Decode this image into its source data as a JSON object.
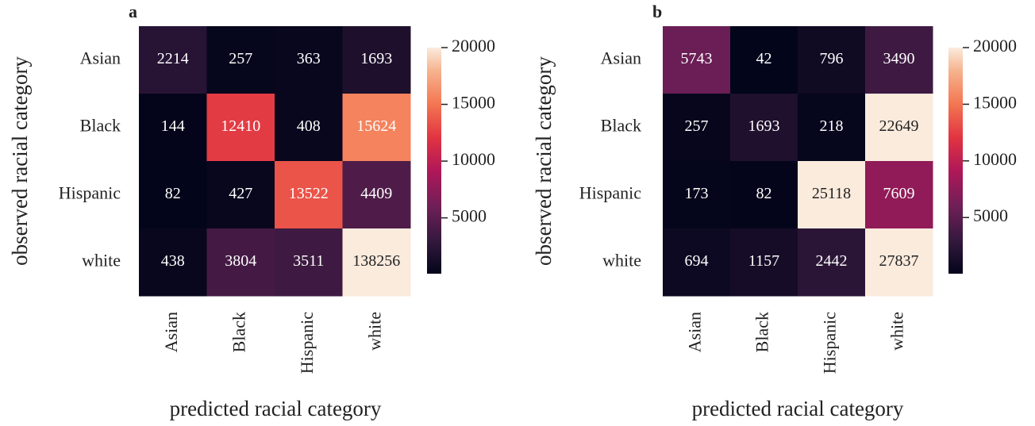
{
  "chart_data": [
    {
      "type": "heatmap",
      "title": "a",
      "xlabel": "predicted racial category",
      "ylabel": "observed racial category",
      "x": [
        "Asian",
        "Black",
        "Hispanic",
        "white"
      ],
      "y": [
        "Asian",
        "Black",
        "Hispanic",
        "white"
      ],
      "values": [
        [
          2214,
          257,
          363,
          1693
        ],
        [
          144,
          12410,
          408,
          15624
        ],
        [
          82,
          427,
          13522,
          4409
        ],
        [
          438,
          3804,
          3511,
          138256
        ]
      ],
      "colormap": "rocket",
      "clim": [
        82,
        20000
      ],
      "cticks": [
        5000,
        10000,
        15000,
        20000
      ]
    },
    {
      "type": "heatmap",
      "title": "b",
      "xlabel": "predicted racial category",
      "ylabel": "observed racial category",
      "x": [
        "Asian",
        "Black",
        "Hispanic",
        "white"
      ],
      "y": [
        "Asian",
        "Black",
        "Hispanic",
        "white"
      ],
      "values": [
        [
          5743,
          42,
          796,
          3490
        ],
        [
          257,
          1693,
          218,
          22649
        ],
        [
          173,
          82,
          25118,
          7609
        ],
        [
          694,
          1157,
          2442,
          27837
        ]
      ],
      "colormap": "rocket",
      "clim": [
        42,
        20000
      ],
      "cticks": [
        5000,
        10000,
        15000,
        20000
      ]
    }
  ]
}
